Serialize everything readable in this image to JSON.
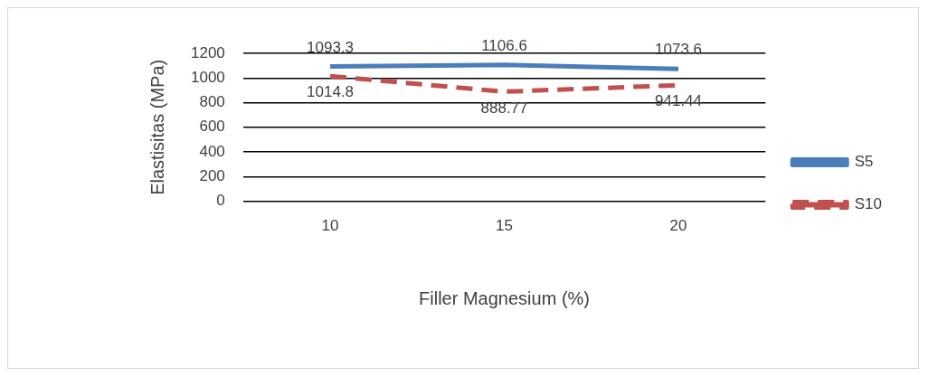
{
  "chart_data": {
    "type": "line",
    "xlabel": "Filler Magnesium (%)",
    "ylabel": "Elastisitas (MPa)",
    "categories": [
      "10",
      "15",
      "20"
    ],
    "series": [
      {
        "name": "S5",
        "color": "#4a7ebb",
        "values": [
          1093.3,
          1106.6,
          1073.6
        ],
        "line_style": "solid"
      },
      {
        "name": "S10",
        "color": "#c0504d",
        "values": [
          1014.8,
          888.77,
          941.44
        ],
        "line_style": "dashed"
      }
    ],
    "ylim": [
      0,
      1200
    ],
    "yticks": [
      0,
      200,
      400,
      600,
      800,
      1000,
      1200
    ],
    "grid": "y",
    "legend": "right",
    "marker": "none",
    "data_labels": true
  }
}
